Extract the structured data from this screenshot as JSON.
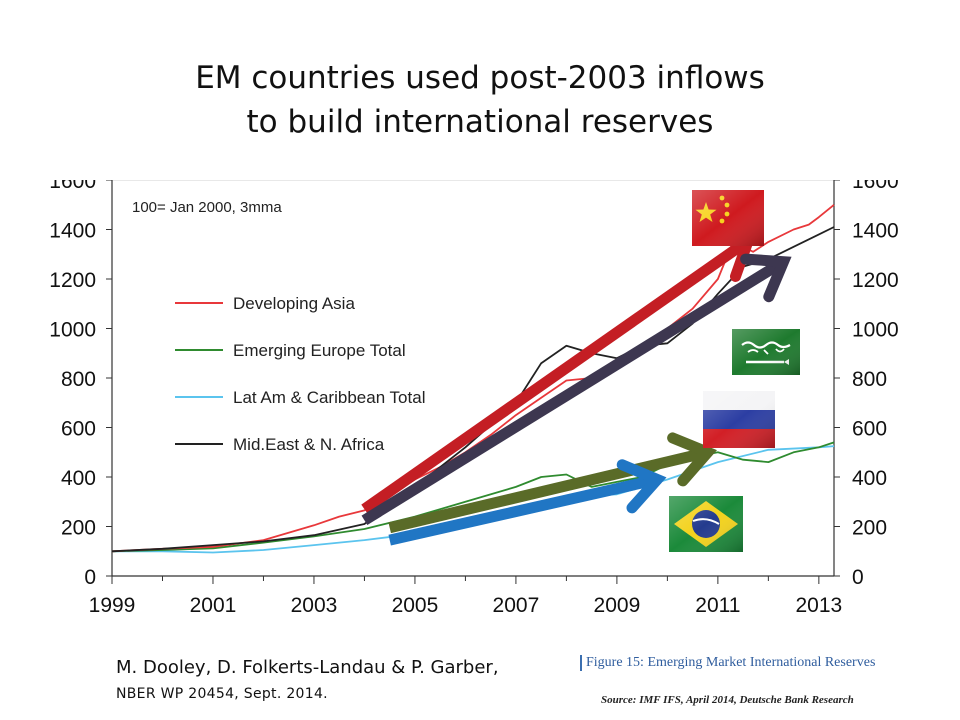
{
  "slide": {
    "title_line1": "EM countries used post-2003 inflows",
    "title_line2": "to build international reserves"
  },
  "citation": {
    "authors": "M. Dooley, D. Folkerts-Landau & P. Garber,",
    "paper": "NBER WP 20454, Sept. 2014."
  },
  "figure": {
    "caption": "Figure 15: Emerging Market International Reserves",
    "source": "Source: IMF IFS, April 2014, Deutsche Bank Research"
  },
  "flags": [
    {
      "country": "China",
      "icon": "china-flag-icon"
    },
    {
      "country": "Saudi Arabia",
      "icon": "saudi-arabia-flag-icon"
    },
    {
      "country": "Russia",
      "icon": "russia-flag-icon"
    },
    {
      "country": "Brazil",
      "icon": "brazil-flag-icon"
    }
  ],
  "chart_data": {
    "type": "line",
    "note": "100= Jan 2000, 3mma",
    "x_ticks": [
      "1999",
      "2001",
      "2003",
      "2005",
      "2007",
      "2009",
      "2011",
      "2013"
    ],
    "y_ticks": [
      "0",
      "200",
      "400",
      "600",
      "800",
      "1000",
      "1200",
      "1400",
      "1600"
    ],
    "xlim": [
      1999,
      2013.3
    ],
    "ylim": [
      0,
      1600
    ],
    "legend_position": "upper-left",
    "grid": false,
    "series": [
      {
        "name": "Developing Asia",
        "color": "#e8383b",
        "points": [
          [
            1999,
            100
          ],
          [
            2000,
            110
          ],
          [
            2001,
            118
          ],
          [
            2002,
            145
          ],
          [
            2003,
            205
          ],
          [
            2003.5,
            240
          ],
          [
            2004,
            265
          ],
          [
            2004.5,
            330
          ],
          [
            2005,
            390
          ],
          [
            2005.5,
            440
          ],
          [
            2006,
            500
          ],
          [
            2006.5,
            570
          ],
          [
            2007,
            650
          ],
          [
            2007.5,
            720
          ],
          [
            2008,
            790
          ],
          [
            2008.5,
            800
          ],
          [
            2009,
            850
          ],
          [
            2009.5,
            920
          ],
          [
            2010,
            1000
          ],
          [
            2010.5,
            1080
          ],
          [
            2011,
            1200
          ],
          [
            2011.3,
            1350
          ],
          [
            2011.7,
            1310
          ],
          [
            2012,
            1350
          ],
          [
            2012.5,
            1400
          ],
          [
            2012.8,
            1420
          ],
          [
            2013,
            1450
          ],
          [
            2013.3,
            1500
          ]
        ]
      },
      {
        "name": "Emerging Europe Total",
        "color": "#2f8b2f",
        "points": [
          [
            1999,
            100
          ],
          [
            2000,
            105
          ],
          [
            2001,
            112
          ],
          [
            2002,
            135
          ],
          [
            2003,
            160
          ],
          [
            2004,
            190
          ],
          [
            2005,
            240
          ],
          [
            2006,
            300
          ],
          [
            2007,
            360
          ],
          [
            2007.5,
            400
          ],
          [
            2008,
            410
          ],
          [
            2008.5,
            360
          ],
          [
            2009,
            380
          ],
          [
            2009.5,
            400
          ],
          [
            2010,
            450
          ],
          [
            2010.5,
            480
          ],
          [
            2011,
            500
          ],
          [
            2011.5,
            470
          ],
          [
            2012,
            460
          ],
          [
            2012.5,
            500
          ],
          [
            2013,
            520
          ],
          [
            2013.3,
            540
          ]
        ]
      },
      {
        "name": "Lat Am & Caribbean Total",
        "color": "#5bc4ee",
        "points": [
          [
            1999,
            100
          ],
          [
            2000,
            100
          ],
          [
            2001,
            95
          ],
          [
            2002,
            105
          ],
          [
            2003,
            125
          ],
          [
            2004,
            145
          ],
          [
            2005,
            170
          ],
          [
            2006,
            215
          ],
          [
            2007,
            270
          ],
          [
            2008,
            320
          ],
          [
            2009,
            330
          ],
          [
            2010,
            390
          ],
          [
            2011,
            460
          ],
          [
            2012,
            510
          ],
          [
            2013,
            520
          ],
          [
            2013.3,
            525
          ]
        ]
      },
      {
        "name": "Mid.East & N. Africa",
        "color": "#222222",
        "points": [
          [
            1999,
            100
          ],
          [
            2000,
            110
          ],
          [
            2001,
            125
          ],
          [
            2002,
            140
          ],
          [
            2003,
            165
          ],
          [
            2004,
            210
          ],
          [
            2005,
            360
          ],
          [
            2006,
            520
          ],
          [
            2007,
            700
          ],
          [
            2007.5,
            860
          ],
          [
            2008,
            930
          ],
          [
            2008.5,
            900
          ],
          [
            2009,
            880
          ],
          [
            2009.5,
            930
          ],
          [
            2010,
            940
          ],
          [
            2010.5,
            1020
          ],
          [
            2011,
            1140
          ],
          [
            2011.5,
            1250
          ],
          [
            2012,
            1280
          ],
          [
            2012.5,
            1330
          ],
          [
            2013,
            1380
          ],
          [
            2013.3,
            1410
          ]
        ]
      }
    ],
    "overlay_arrows": [
      {
        "color": "#c41e24",
        "from": [
          2004.0,
          270
        ],
        "to": [
          2011.6,
          1355
        ],
        "label": "Developing Asia trend"
      },
      {
        "color": "#3d3750",
        "from": [
          2004.0,
          225
        ],
        "to": [
          2012.3,
          1270
        ],
        "label": "Mid.East trend"
      },
      {
        "color": "#5a6b28",
        "from": [
          2004.5,
          195
        ],
        "to": [
          2010.8,
          500
        ],
        "label": "Europe trend"
      },
      {
        "color": "#2076c4",
        "from": [
          2004.5,
          145
        ],
        "to": [
          2009.8,
          390
        ],
        "label": "Lat Am trend"
      }
    ]
  }
}
